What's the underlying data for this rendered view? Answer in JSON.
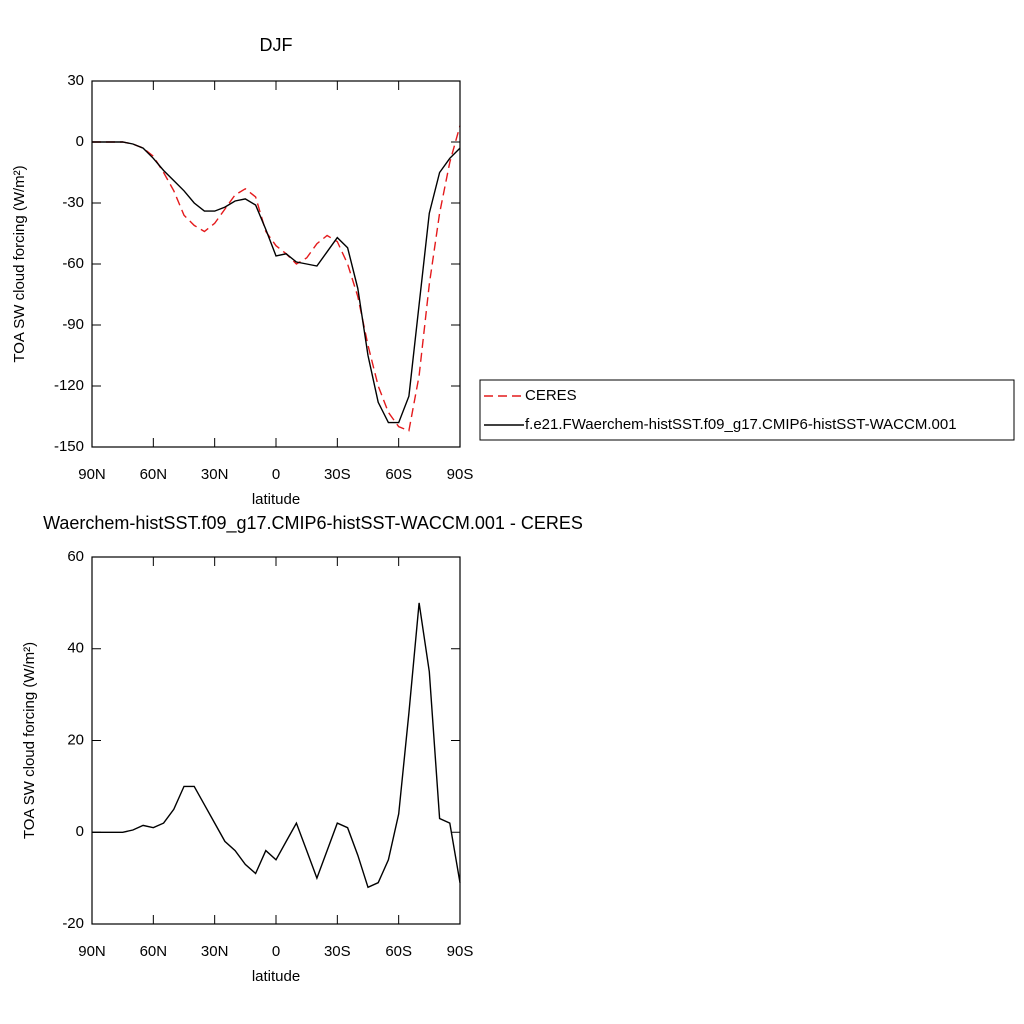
{
  "chart_data": [
    {
      "type": "line",
      "title": "DJF",
      "xlabel": "latitude",
      "ylabel": "TOA SW cloud forcing (W/m²)",
      "x": [
        90,
        85,
        80,
        75,
        70,
        65,
        60,
        55,
        50,
        45,
        40,
        35,
        30,
        25,
        20,
        15,
        10,
        5,
        0,
        -5,
        -10,
        -15,
        -20,
        -25,
        -30,
        -35,
        -40,
        -45,
        -50,
        -55,
        -60,
        -65,
        -70,
        -75,
        -80,
        -85,
        -90
      ],
      "xlim": [
        90,
        -90
      ],
      "xticks": [
        {
          "value": 90,
          "label": "90N"
        },
        {
          "value": 60,
          "label": "60N"
        },
        {
          "value": 30,
          "label": "30N"
        },
        0,
        {
          "value": -30,
          "label": "30S"
        },
        {
          "value": -60,
          "label": "60S"
        },
        {
          "value": -90,
          "label": "90S"
        }
      ],
      "ylim": [
        -150,
        30
      ],
      "yticks": [
        -150,
        -120,
        -90,
        -60,
        -30,
        0,
        30
      ],
      "legend": "right",
      "series": [
        {
          "name": "CERES",
          "color": "#e41a1c",
          "dash": true,
          "values": [
            0,
            0,
            0,
            0,
            -1,
            -3,
            -7,
            -15,
            -24,
            -36,
            -41,
            -44,
            -40,
            -33,
            -26,
            -23,
            -27,
            -44,
            -51,
            -55,
            -60,
            -57,
            -50,
            -46,
            -49,
            -60,
            -76,
            -100,
            -120,
            -133,
            -140,
            -142,
            -115,
            -70,
            -35,
            -10,
            8
          ]
        },
        {
          "name": "f.e21.FWaerchem-histSST.f09_g17.CMIP6-histSST-WACCM.001",
          "color": "#000000",
          "dash": false,
          "values": [
            0,
            0,
            0,
            0,
            -1,
            -3,
            -8,
            -14,
            -19,
            -24,
            -30,
            -34,
            -34,
            -32,
            -29,
            -28,
            -31,
            -43,
            -56,
            -55,
            -59,
            -60,
            -61,
            -54,
            -47,
            -52,
            -72,
            -105,
            -128,
            -138,
            -138,
            -125,
            -80,
            -35,
            -15,
            -8,
            -3
          ]
        }
      ]
    },
    {
      "type": "line",
      "title": "Waerchem-histSST.f09_g17.CMIP6-histSST-WACCM.001 - CERES",
      "xlabel": "latitude",
      "ylabel": "TOA SW cloud forcing (W/m²)",
      "x": [
        90,
        85,
        80,
        75,
        70,
        65,
        60,
        55,
        50,
        45,
        40,
        35,
        30,
        25,
        20,
        15,
        10,
        5,
        0,
        -5,
        -10,
        -15,
        -20,
        -25,
        -30,
        -35,
        -40,
        -45,
        -50,
        -55,
        -60,
        -65,
        -70,
        -75,
        -80,
        -85,
        -90
      ],
      "xlim": [
        90,
        -90
      ],
      "xticks": [
        {
          "value": 90,
          "label": "90N"
        },
        {
          "value": 60,
          "label": "60N"
        },
        {
          "value": 30,
          "label": "30N"
        },
        0,
        {
          "value": -30,
          "label": "30S"
        },
        {
          "value": -60,
          "label": "60S"
        },
        {
          "value": -90,
          "label": "90S"
        }
      ],
      "ylim": [
        -20,
        60
      ],
      "yticks": [
        -20,
        0,
        20,
        40,
        60
      ],
      "series": [
        {
          "color": "#000000",
          "dash": false,
          "values": [
            0,
            0,
            0,
            0,
            0.5,
            1.5,
            1,
            2,
            5,
            10,
            10,
            6,
            2,
            -2,
            -4,
            -7,
            -9,
            -4,
            -6,
            -2,
            2,
            -4,
            -10,
            -4,
            2,
            1,
            -5,
            -12,
            -11,
            -6,
            4,
            26,
            50,
            35,
            3,
            2,
            -11
          ]
        }
      ]
    }
  ]
}
